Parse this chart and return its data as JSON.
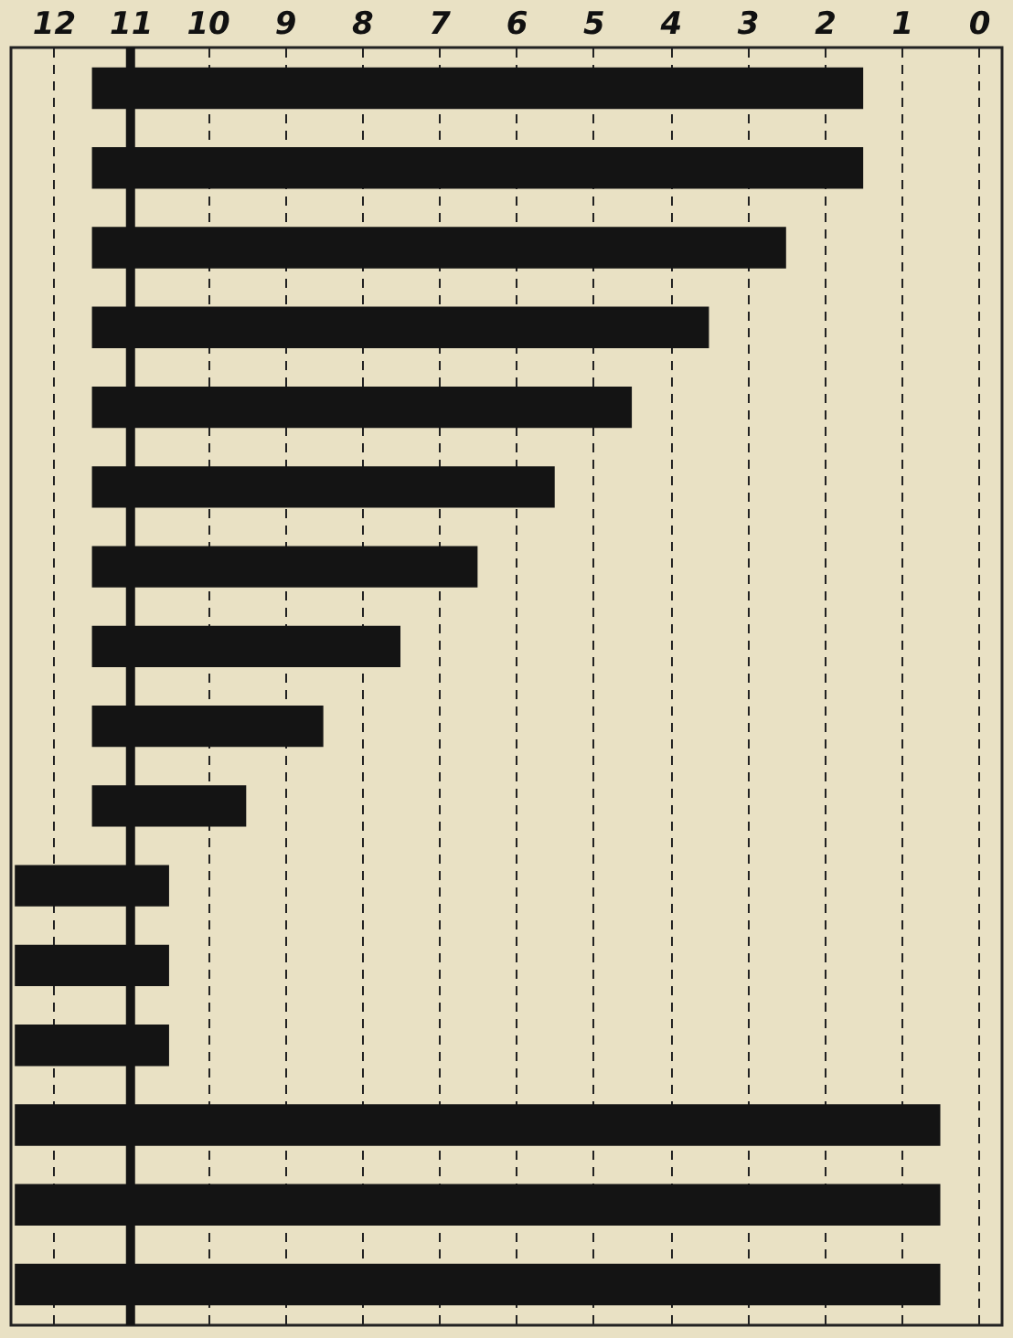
{
  "chart_data": {
    "type": "bar",
    "orientation": "horizontal",
    "categories": [
      null,
      null,
      null,
      null,
      null,
      null,
      null,
      null,
      null,
      null,
      null,
      null,
      null,
      null,
      null,
      null
    ],
    "base": [
      1.5,
      1.5,
      2.5,
      3.5,
      4.5,
      5.5,
      6.5,
      7.5,
      8.5,
      9.5,
      10.5,
      10.5,
      10.5,
      0.5,
      0.5,
      0.5
    ],
    "values": [
      10,
      10,
      9,
      8,
      7,
      6,
      5,
      4,
      3,
      2,
      2,
      2,
      2,
      12,
      12,
      12
    ],
    "color": "#141414",
    "xlim": [
      12.55,
      -0.3
    ],
    "xticks": [
      12,
      11,
      10,
      9,
      8,
      7,
      6,
      5,
      4,
      3,
      2,
      1,
      0
    ],
    "grid": "x",
    "line_style": "dashed",
    "tick_labels": "x",
    "ref_lines": [
      {
        "axis": "x",
        "value": 11,
        "color": "#141414"
      }
    ]
  }
}
